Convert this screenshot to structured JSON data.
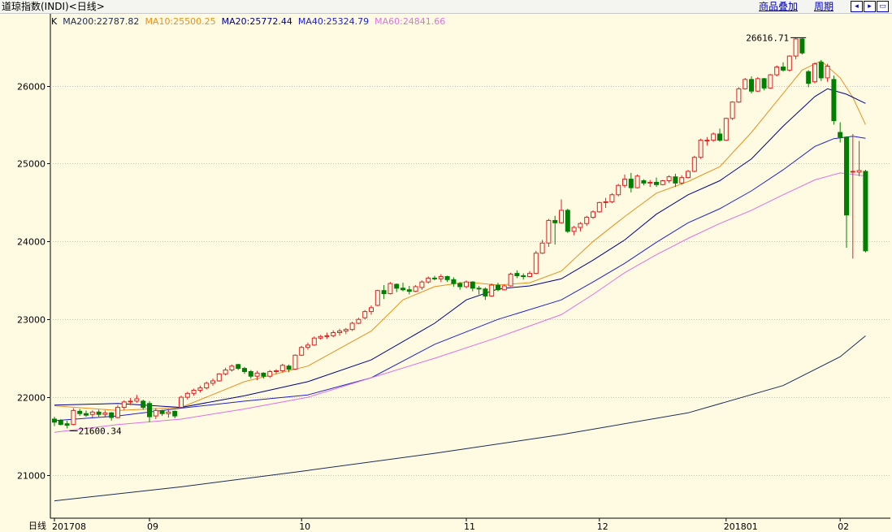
{
  "header": {
    "title": "道琼指数(INDI)<日线>",
    "links": {
      "overlay": "商品叠加",
      "period": "周期"
    },
    "nav_icons": {
      "left": "arrow-left-icon",
      "right": "arrow-right-icon",
      "fit": "fit-icon"
    }
  },
  "legend": {
    "prefix": "K",
    "items": [
      {
        "text": "MA200:22787.82",
        "color": "#1a2a55"
      },
      {
        "text": "MA10:25500.25",
        "color": "#e8901c"
      },
      {
        "text": "MA20:25772.44",
        "color": "#00008b"
      },
      {
        "text": "MA40:25324.79",
        "color": "#2020d0"
      },
      {
        "text": "MA60:24841.66",
        "color": "#e070e0"
      }
    ]
  },
  "footer": {
    "period": "日线"
  },
  "colors": {
    "up": "#e02020",
    "down": "#008000",
    "grid": "#c0c0c0",
    "axis": "#000000"
  },
  "chart_data": {
    "type": "candlestick",
    "y_ticks": [
      21000,
      22000,
      23000,
      24000,
      25000,
      26000
    ],
    "ylim": [
      20650,
      26900
    ],
    "x_labels": [
      "201708",
      "09",
      "10",
      "11",
      "12",
      "201801",
      "02"
    ],
    "x_label_index": [
      0,
      15,
      39,
      65,
      86,
      106,
      124
    ],
    "annotations": [
      {
        "text": "26616.71",
        "index": 119,
        "price": 26616.71,
        "type": "high"
      },
      {
        "text": "21600.34",
        "index": 2,
        "price": 21600.34,
        "type": "low"
      }
    ],
    "candles": [
      [
        21720,
        21750,
        21630,
        21680
      ],
      [
        21700,
        21720,
        21640,
        21650
      ],
      [
        21660,
        21700,
        21600.34,
        21640
      ],
      [
        21650,
        21860,
        21640,
        21830
      ],
      [
        21820,
        21850,
        21760,
        21790
      ],
      [
        21790,
        21830,
        21750,
        21770
      ],
      [
        21780,
        21830,
        21740,
        21810
      ],
      [
        21810,
        21840,
        21750,
        21780
      ],
      [
        21780,
        21830,
        21740,
        21800
      ],
      [
        21800,
        21810,
        21700,
        21740
      ],
      [
        21740,
        21900,
        21730,
        21870
      ],
      [
        21870,
        21960,
        21840,
        21940
      ],
      [
        21940,
        21990,
        21900,
        21950
      ],
      [
        21950,
        22030,
        21930,
        21980
      ],
      [
        21950,
        21970,
        21840,
        21870
      ],
      [
        21920,
        21950,
        21680,
        21750
      ],
      [
        21760,
        21860,
        21720,
        21830
      ],
      [
        21830,
        21840,
        21760,
        21790
      ],
      [
        21790,
        21850,
        21740,
        21810
      ],
      [
        21820,
        21830,
        21730,
        21760
      ],
      [
        21870,
        22020,
        21860,
        22000
      ],
      [
        22000,
        22070,
        21970,
        22050
      ],
      [
        22050,
        22110,
        22020,
        22090
      ],
      [
        22090,
        22150,
        22060,
        22120
      ],
      [
        22120,
        22200,
        22100,
        22180
      ],
      [
        22180,
        22240,
        22150,
        22210
      ],
      [
        22210,
        22310,
        22200,
        22300
      ],
      [
        22300,
        22380,
        22280,
        22350
      ],
      [
        22350,
        22420,
        22330,
        22400
      ],
      [
        22420,
        22430,
        22350,
        22370
      ],
      [
        22370,
        22390,
        22300,
        22330
      ],
      [
        22330,
        22350,
        22240,
        22270
      ],
      [
        22270,
        22340,
        22220,
        22310
      ],
      [
        22310,
        22320,
        22240,
        22270
      ],
      [
        22270,
        22350,
        22250,
        22330
      ],
      [
        22330,
        22360,
        22300,
        22340
      ],
      [
        22340,
        22430,
        22320,
        22410
      ],
      [
        22400,
        22420,
        22320,
        22360
      ],
      [
        22360,
        22550,
        22350,
        22540
      ],
      [
        22540,
        22660,
        22530,
        22640
      ],
      [
        22640,
        22700,
        22610,
        22670
      ],
      [
        22670,
        22780,
        22660,
        22760
      ],
      [
        22760,
        22800,
        22740,
        22780
      ],
      [
        22780,
        22830,
        22750,
        22790
      ],
      [
        22790,
        22860,
        22770,
        22830
      ],
      [
        22830,
        22880,
        22790,
        22850
      ],
      [
        22850,
        22890,
        22810,
        22870
      ],
      [
        22870,
        22970,
        22850,
        22950
      ],
      [
        22950,
        23020,
        22940,
        23000
      ],
      [
        23020,
        23120,
        23000,
        23100
      ],
      [
        23100,
        23180,
        23060,
        23150
      ],
      [
        23180,
        23380,
        23170,
        23370
      ],
      [
        23370,
        23440,
        23260,
        23330
      ],
      [
        23330,
        23480,
        23320,
        23460
      ],
      [
        23450,
        23460,
        23350,
        23400
      ],
      [
        23400,
        23470,
        23360,
        23380
      ],
      [
        23380,
        23430,
        23320,
        23360
      ],
      [
        23360,
        23440,
        23350,
        23420
      ],
      [
        23410,
        23500,
        23380,
        23480
      ],
      [
        23480,
        23550,
        23460,
        23530
      ],
      [
        23530,
        23560,
        23500,
        23520
      ],
      [
        23520,
        23580,
        23480,
        23550
      ],
      [
        23550,
        23560,
        23480,
        23510
      ],
      [
        23510,
        23540,
        23420,
        23460
      ],
      [
        23460,
        23480,
        23380,
        23420
      ],
      [
        23420,
        23500,
        23400,
        23480
      ],
      [
        23480,
        23490,
        23360,
        23400
      ],
      [
        23400,
        23430,
        23320,
        23390
      ],
      [
        23390,
        23410,
        23250,
        23300
      ],
      [
        23300,
        23460,
        23290,
        23440
      ],
      [
        23440,
        23470,
        23360,
        23380
      ],
      [
        23380,
        23450,
        23370,
        23430
      ],
      [
        23430,
        23600,
        23420,
        23580
      ],
      [
        23590,
        23630,
        23530,
        23560
      ],
      [
        23560,
        23590,
        23510,
        23550
      ],
      [
        23550,
        23620,
        23540,
        23590
      ],
      [
        23590,
        23880,
        23580,
        23850
      ],
      [
        23850,
        24020,
        23840,
        23980
      ],
      [
        23980,
        24290,
        23930,
        24270
      ],
      [
        24270,
        24330,
        23960,
        24240
      ],
      [
        24240,
        24540,
        24230,
        24400
      ],
      [
        24400,
        24420,
        24110,
        24130
      ],
      [
        24130,
        24200,
        24080,
        24180
      ],
      [
        24180,
        24250,
        24130,
        24230
      ],
      [
        24230,
        24330,
        24200,
        24310
      ],
      [
        24310,
        24400,
        24290,
        24380
      ],
      [
        24380,
        24510,
        24370,
        24500
      ],
      [
        24500,
        24560,
        24430,
        24510
      ],
      [
        24510,
        24620,
        24490,
        24600
      ],
      [
        24600,
        24740,
        24580,
        24720
      ],
      [
        24720,
        24860,
        24690,
        24800
      ],
      [
        24800,
        24880,
        24630,
        24690
      ],
      [
        24690,
        24860,
        24680,
        24840
      ],
      [
        24780,
        24800,
        24720,
        24750
      ],
      [
        24750,
        24790,
        24700,
        24760
      ],
      [
        24760,
        24820,
        24700,
        24730
      ],
      [
        24730,
        24790,
        24720,
        24780
      ],
      [
        24780,
        24850,
        24750,
        24830
      ],
      [
        24830,
        24870,
        24700,
        24750
      ],
      [
        24750,
        24850,
        24730,
        24820
      ],
      [
        24820,
        24920,
        24810,
        24900
      ],
      [
        24900,
        25100,
        24890,
        25080
      ],
      [
        25080,
        25320,
        25060,
        25300
      ],
      [
        25300,
        25340,
        25230,
        25300
      ],
      [
        25300,
        25400,
        25280,
        25380
      ],
      [
        25380,
        25450,
        25280,
        25300
      ],
      [
        25300,
        25590,
        25290,
        25580
      ],
      [
        25580,
        25800,
        25560,
        25790
      ],
      [
        25790,
        25980,
        25780,
        25960
      ],
      [
        25960,
        26100,
        25950,
        26080
      ],
      [
        26080,
        26120,
        25900,
        25930
      ],
      [
        25930,
        26110,
        25920,
        26090
      ],
      [
        26090,
        26100,
        25940,
        25970
      ],
      [
        25970,
        26150,
        25960,
        26140
      ],
      [
        26140,
        26260,
        26120,
        26240
      ],
      [
        26240,
        26300,
        26180,
        26200
      ],
      [
        26200,
        26390,
        26180,
        26380
      ],
      [
        26380,
        26616.71,
        26340,
        26600
      ],
      [
        26600,
        26610,
        26400,
        26420
      ],
      [
        26180,
        26200,
        25980,
        26030
      ],
      [
        26050,
        26300,
        26030,
        26280
      ],
      [
        26300,
        26330,
        26060,
        26100
      ],
      [
        26100,
        26280,
        26050,
        26250
      ],
      [
        26080,
        26130,
        25500,
        25550
      ],
      [
        25400,
        25530,
        25270,
        25340
      ],
      [
        25340,
        25350,
        23920,
        24340
      ],
      [
        24900,
        25380,
        23780,
        24900
      ],
      [
        24890,
        25290,
        24840,
        24910
      ],
      [
        24900,
        24920,
        23860,
        23880
      ]
    ],
    "ma_lines": [
      {
        "name": "MA200",
        "color": "#1a2a55",
        "points": [
          [
            0,
            20670
          ],
          [
            20,
            20850
          ],
          [
            40,
            21060
          ],
          [
            60,
            21280
          ],
          [
            80,
            21520
          ],
          [
            100,
            21800
          ],
          [
            115,
            22150
          ],
          [
            124,
            22520
          ],
          [
            128,
            22787.82
          ]
        ]
      },
      {
        "name": "MA10",
        "color": "#e8901c",
        "points": [
          [
            0,
            21890
          ],
          [
            10,
            21830
          ],
          [
            20,
            21870
          ],
          [
            30,
            22200
          ],
          [
            40,
            22400
          ],
          [
            50,
            22850
          ],
          [
            55,
            23250
          ],
          [
            60,
            23420
          ],
          [
            65,
            23480
          ],
          [
            70,
            23440
          ],
          [
            75,
            23470
          ],
          [
            80,
            23620
          ],
          [
            85,
            24000
          ],
          [
            90,
            24320
          ],
          [
            95,
            24620
          ],
          [
            100,
            24770
          ],
          [
            105,
            24960
          ],
          [
            110,
            25400
          ],
          [
            115,
            25900
          ],
          [
            118,
            26200
          ],
          [
            121,
            26320
          ],
          [
            124,
            26100
          ],
          [
            126,
            25850
          ],
          [
            128,
            25500.25
          ]
        ]
      },
      {
        "name": "MA20",
        "color": "#00008b",
        "points": [
          [
            0,
            21900
          ],
          [
            10,
            21920
          ],
          [
            20,
            21870
          ],
          [
            30,
            22020
          ],
          [
            40,
            22200
          ],
          [
            50,
            22480
          ],
          [
            60,
            22950
          ],
          [
            65,
            23250
          ],
          [
            70,
            23390
          ],
          [
            75,
            23430
          ],
          [
            80,
            23520
          ],
          [
            85,
            23760
          ],
          [
            90,
            24020
          ],
          [
            95,
            24350
          ],
          [
            100,
            24600
          ],
          [
            105,
            24780
          ],
          [
            110,
            25060
          ],
          [
            115,
            25480
          ],
          [
            120,
            25860
          ],
          [
            122,
            25960
          ],
          [
            125,
            25890
          ],
          [
            128,
            25772.44
          ]
        ]
      },
      {
        "name": "MA40",
        "color": "#2020d0",
        "points": [
          [
            0,
            21700
          ],
          [
            10,
            21760
          ],
          [
            20,
            21860
          ],
          [
            30,
            21950
          ],
          [
            40,
            22030
          ],
          [
            50,
            22250
          ],
          [
            60,
            22680
          ],
          [
            70,
            23000
          ],
          [
            80,
            23250
          ],
          [
            85,
            23480
          ],
          [
            90,
            23720
          ],
          [
            95,
            23990
          ],
          [
            100,
            24240
          ],
          [
            105,
            24420
          ],
          [
            110,
            24650
          ],
          [
            115,
            24920
          ],
          [
            120,
            25220
          ],
          [
            123,
            25320
          ],
          [
            126,
            25350
          ],
          [
            128,
            25324.79
          ]
        ]
      },
      {
        "name": "MA60",
        "color": "#e070e0",
        "points": [
          [
            0,
            21550
          ],
          [
            10,
            21650
          ],
          [
            20,
            21720
          ],
          [
            30,
            21850
          ],
          [
            40,
            22000
          ],
          [
            50,
            22250
          ],
          [
            60,
            22500
          ],
          [
            70,
            22770
          ],
          [
            80,
            23060
          ],
          [
            85,
            23320
          ],
          [
            90,
            23600
          ],
          [
            95,
            23830
          ],
          [
            100,
            24040
          ],
          [
            105,
            24230
          ],
          [
            110,
            24400
          ],
          [
            115,
            24600
          ],
          [
            120,
            24790
          ],
          [
            124,
            24880
          ],
          [
            128,
            24841.66
          ]
        ]
      }
    ]
  }
}
